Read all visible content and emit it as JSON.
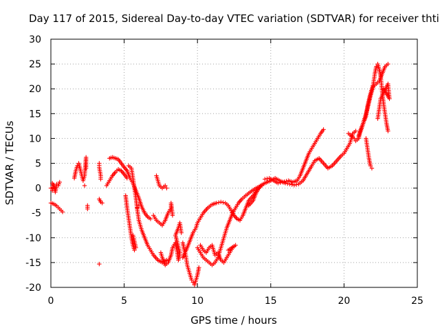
{
  "chart_data": {
    "type": "scatter",
    "title": "Day 117 of 2015, Sidereal Day-to-day VTEC variation (SDTVAR) for receiver thti",
    "xlabel": "GPS time / hours",
    "ylabel": "SDTVAR / TECUs",
    "xlim": [
      0,
      25
    ],
    "ylim": [
      -20,
      30
    ],
    "xticks": [
      0,
      5,
      10,
      15,
      20,
      25
    ],
    "yticks": [
      -20,
      -15,
      -10,
      -5,
      0,
      5,
      10,
      15,
      20,
      25,
      30
    ],
    "grid": true,
    "marker": "+",
    "color": "#ff0000",
    "series": [
      {
        "values": [
          [
            0.0,
            0.0
          ],
          [
            0.1,
            -0.5
          ],
          [
            0.2,
            0.5
          ],
          [
            0.3,
            -0.8
          ],
          [
            0.4,
            0.8
          ],
          [
            0.5,
            0.5
          ],
          [
            0.6,
            1.2
          ],
          [
            0.0,
            -3.0
          ],
          [
            0.2,
            -3.2
          ],
          [
            0.4,
            -3.6
          ],
          [
            0.6,
            -4.2
          ],
          [
            0.8,
            -4.8
          ],
          [
            0.3,
            -0.2
          ],
          [
            0.1,
            1.0
          ]
        ]
      },
      {
        "values": [
          [
            1.6,
            2.0
          ],
          [
            1.7,
            3.5
          ],
          [
            1.8,
            4.5
          ],
          [
            1.9,
            5.0
          ],
          [
            2.0,
            3.8
          ],
          [
            2.2,
            1.5
          ],
          [
            2.3,
            2.5
          ],
          [
            2.4,
            6.2
          ],
          [
            2.4,
            4.0
          ],
          [
            2.5,
            -3.5
          ],
          [
            2.5,
            -4.2
          ],
          [
            2.3,
            0.5
          ]
        ]
      },
      {
        "values": [
          [
            3.3,
            5.0
          ],
          [
            3.3,
            4.2
          ],
          [
            3.4,
            2.5
          ],
          [
            3.4,
            1.8
          ],
          [
            3.3,
            -2.2
          ],
          [
            3.4,
            -2.8
          ],
          [
            3.5,
            -3.0
          ],
          [
            3.3,
            -15.3
          ]
        ]
      },
      {
        "values": [
          [
            4.0,
            6.0
          ],
          [
            4.2,
            6.2
          ],
          [
            4.4,
            6.0
          ],
          [
            4.6,
            5.8
          ],
          [
            4.8,
            5.0
          ],
          [
            5.0,
            4.2
          ],
          [
            5.2,
            3.5
          ],
          [
            5.4,
            2.0
          ],
          [
            5.6,
            1.0
          ],
          [
            5.8,
            -0.5
          ],
          [
            6.0,
            -2.0
          ],
          [
            6.2,
            -3.8
          ],
          [
            6.4,
            -5.0
          ],
          [
            6.6,
            -5.8
          ],
          [
            6.8,
            -6.2
          ]
        ]
      },
      {
        "values": [
          [
            3.8,
            0.5
          ],
          [
            4.0,
            1.5
          ],
          [
            4.2,
            2.5
          ],
          [
            4.4,
            3.2
          ],
          [
            4.6,
            3.8
          ],
          [
            4.8,
            3.5
          ],
          [
            5.0,
            2.8
          ],
          [
            5.2,
            2.0
          ]
        ]
      },
      {
        "values": [
          [
            5.3,
            4.5
          ],
          [
            5.5,
            4.0
          ],
          [
            5.6,
            2.0
          ],
          [
            5.7,
            0.0
          ],
          [
            5.8,
            -2.0
          ],
          [
            5.9,
            -4.5
          ],
          [
            6.0,
            -6.5
          ],
          [
            6.2,
            -8.5
          ],
          [
            6.4,
            -10.0
          ],
          [
            6.6,
            -11.5
          ],
          [
            6.8,
            -12.5
          ],
          [
            7.0,
            -13.5
          ],
          [
            7.3,
            -14.5
          ],
          [
            7.6,
            -15.0
          ],
          [
            7.9,
            -14.5
          ]
        ]
      },
      {
        "values": [
          [
            5.1,
            -1.5
          ],
          [
            5.2,
            -4.0
          ],
          [
            5.3,
            -6.0
          ],
          [
            5.4,
            -8.0
          ],
          [
            5.5,
            -10.0
          ],
          [
            5.6,
            -11.5
          ],
          [
            5.7,
            -12.5
          ],
          [
            5.8,
            -12.0
          ],
          [
            5.6,
            -9.5
          ],
          [
            5.9,
            -4.0
          ],
          [
            6.0,
            -3.5
          ]
        ]
      },
      {
        "values": [
          [
            7.2,
            2.5
          ],
          [
            7.3,
            1.5
          ],
          [
            7.4,
            0.5
          ],
          [
            7.6,
            0.0
          ],
          [
            7.8,
            0.5
          ],
          [
            7.9,
            0.0
          ],
          [
            7.0,
            -5.5
          ],
          [
            7.2,
            -6.5
          ],
          [
            7.4,
            -7.0
          ],
          [
            7.6,
            -7.5
          ],
          [
            7.8,
            -6.5
          ],
          [
            8.0,
            -5.0
          ],
          [
            8.2,
            -4.0
          ],
          [
            8.2,
            -3.0
          ],
          [
            8.3,
            -5.5
          ]
        ]
      },
      {
        "values": [
          [
            7.5,
            -13.0
          ],
          [
            7.6,
            -14.0
          ],
          [
            7.8,
            -15.5
          ],
          [
            8.0,
            -15.0
          ],
          [
            8.2,
            -13.5
          ],
          [
            8.3,
            -12.0
          ],
          [
            8.5,
            -11.0
          ],
          [
            8.6,
            -12.5
          ],
          [
            8.7,
            -14.5
          ],
          [
            8.8,
            -13.0
          ],
          [
            8.5,
            -9.5
          ],
          [
            8.7,
            -8.0
          ],
          [
            8.8,
            -7.0
          ],
          [
            8.9,
            -9.0
          ]
        ]
      },
      {
        "values": [
          [
            9.0,
            -11.0
          ],
          [
            9.1,
            -12.5
          ],
          [
            9.2,
            -13.5
          ],
          [
            9.3,
            -15.5
          ],
          [
            9.4,
            -16.5
          ],
          [
            9.5,
            -17.5
          ],
          [
            9.6,
            -18.5
          ],
          [
            9.7,
            -19.0
          ],
          [
            9.8,
            -19.5
          ],
          [
            9.9,
            -18.5
          ],
          [
            10.0,
            -17.5
          ],
          [
            10.1,
            -16.0
          ]
        ]
      },
      {
        "values": [
          [
            9.0,
            -14.0
          ],
          [
            9.3,
            -12.0
          ],
          [
            9.5,
            -10.5
          ],
          [
            9.7,
            -9.0
          ],
          [
            9.9,
            -8.0
          ],
          [
            10.0,
            -7.0
          ],
          [
            10.2,
            -6.0
          ],
          [
            10.4,
            -5.0
          ],
          [
            10.7,
            -4.0
          ],
          [
            11.0,
            -3.3
          ],
          [
            11.3,
            -3.0
          ],
          [
            11.6,
            -2.8
          ],
          [
            11.9,
            -3.0
          ],
          [
            12.1,
            -3.5
          ],
          [
            12.3,
            -4.5
          ],
          [
            12.5,
            -5.5
          ],
          [
            12.7,
            -6.2
          ],
          [
            12.9,
            -6.5
          ],
          [
            13.1,
            -5.5
          ],
          [
            13.3,
            -4.0
          ],
          [
            13.5,
            -2.5
          ],
          [
            13.8,
            -1.5
          ],
          [
            14.0,
            -0.5
          ],
          [
            14.2,
            0.0
          ]
        ]
      },
      {
        "values": [
          [
            10.0,
            -12.0
          ],
          [
            10.2,
            -13.0
          ],
          [
            10.4,
            -14.0
          ],
          [
            10.6,
            -14.5
          ],
          [
            10.8,
            -15.0
          ],
          [
            11.0,
            -15.5
          ],
          [
            11.2,
            -15.0
          ],
          [
            11.4,
            -14.0
          ],
          [
            11.6,
            -12.0
          ],
          [
            11.8,
            -10.0
          ],
          [
            12.0,
            -8.0
          ],
          [
            12.2,
            -6.5
          ],
          [
            12.4,
            -5.0
          ],
          [
            12.6,
            -4.0
          ],
          [
            12.8,
            -3.0
          ],
          [
            13.0,
            -2.3
          ],
          [
            13.3,
            -1.5
          ],
          [
            13.6,
            -0.8
          ],
          [
            14.0,
            0.0
          ],
          [
            14.4,
            0.5
          ]
        ]
      },
      {
        "values": [
          [
            10.2,
            -11.5
          ],
          [
            10.4,
            -12.5
          ],
          [
            10.6,
            -13.0
          ],
          [
            10.8,
            -12.0
          ],
          [
            11.0,
            -11.5
          ],
          [
            11.2,
            -13.5
          ],
          [
            11.4,
            -13.0
          ],
          [
            11.6,
            -14.5
          ],
          [
            11.8,
            -15.0
          ],
          [
            12.0,
            -14.0
          ],
          [
            12.2,
            -13.0
          ],
          [
            12.4,
            -12.0
          ],
          [
            12.6,
            -11.5
          ],
          [
            12.1,
            -12.5
          ]
        ]
      },
      {
        "values": [
          [
            13.5,
            -3.5
          ],
          [
            13.8,
            -2.5
          ],
          [
            14.0,
            -1.0
          ],
          [
            14.3,
            0.5
          ],
          [
            14.6,
            1.0
          ],
          [
            15.0,
            1.5
          ],
          [
            15.3,
            2.0
          ],
          [
            15.6,
            1.5
          ],
          [
            16.0,
            1.0
          ],
          [
            16.3,
            0.8
          ],
          [
            16.6,
            0.6
          ],
          [
            16.9,
            0.8
          ],
          [
            17.2,
            1.5
          ],
          [
            17.5,
            3.0
          ],
          [
            17.8,
            4.5
          ],
          [
            18.0,
            5.5
          ],
          [
            18.3,
            6.0
          ],
          [
            18.6,
            5.0
          ],
          [
            18.9,
            4.0
          ],
          [
            19.2,
            4.5
          ],
          [
            19.5,
            5.5
          ],
          [
            19.8,
            6.5
          ],
          [
            20.0,
            7.0
          ],
          [
            20.2,
            8.0
          ],
          [
            20.4,
            9.0
          ],
          [
            20.6,
            11.0
          ],
          [
            20.8,
            11.5
          ]
        ]
      },
      {
        "values": [
          [
            14.6,
            1.8
          ],
          [
            14.9,
            2.0
          ],
          [
            15.2,
            1.5
          ],
          [
            15.5,
            1.0
          ],
          [
            15.8,
            1.2
          ],
          [
            16.2,
            1.5
          ],
          [
            16.5,
            1.2
          ],
          [
            16.8,
            1.5
          ],
          [
            17.0,
            2.5
          ],
          [
            17.2,
            4.0
          ],
          [
            17.4,
            5.5
          ],
          [
            17.6,
            7.0
          ],
          [
            17.8,
            8.0
          ],
          [
            18.0,
            9.0
          ],
          [
            18.2,
            10.0
          ],
          [
            18.4,
            11.0
          ],
          [
            18.6,
            11.8
          ]
        ]
      },
      {
        "values": [
          [
            20.3,
            11.0
          ],
          [
            20.5,
            10.5
          ],
          [
            20.7,
            10.0
          ],
          [
            20.8,
            9.5
          ],
          [
            21.0,
            10.0
          ],
          [
            21.1,
            11.5
          ],
          [
            21.3,
            13.0
          ],
          [
            21.5,
            14.5
          ],
          [
            21.6,
            16.5
          ],
          [
            21.8,
            19.0
          ],
          [
            22.0,
            21.0
          ],
          [
            22.1,
            23.0
          ],
          [
            22.2,
            24.5
          ],
          [
            22.3,
            25.0
          ],
          [
            22.4,
            24.0
          ],
          [
            22.5,
            22.5
          ],
          [
            22.6,
            19.5
          ],
          [
            22.7,
            17.0
          ],
          [
            22.8,
            15.0
          ],
          [
            22.9,
            13.0
          ],
          [
            23.0,
            11.5
          ]
        ]
      },
      {
        "values": [
          [
            21.0,
            10.5
          ],
          [
            21.2,
            12.0
          ],
          [
            21.4,
            14.0
          ],
          [
            21.6,
            16.0
          ],
          [
            21.8,
            18.5
          ],
          [
            22.0,
            20.5
          ],
          [
            22.2,
            21.0
          ],
          [
            22.4,
            21.5
          ],
          [
            22.6,
            23.0
          ],
          [
            22.8,
            24.5
          ],
          [
            23.0,
            25.0
          ],
          [
            21.5,
            10.0
          ],
          [
            21.6,
            8.0
          ],
          [
            21.7,
            6.0
          ],
          [
            21.8,
            4.5
          ],
          [
            21.9,
            4.0
          ],
          [
            22.3,
            14.0
          ],
          [
            22.4,
            16.0
          ],
          [
            22.5,
            18.0
          ],
          [
            23.0,
            21.0
          ],
          [
            23.1,
            18.0
          ],
          [
            22.7,
            20.0
          ]
        ]
      }
    ]
  }
}
